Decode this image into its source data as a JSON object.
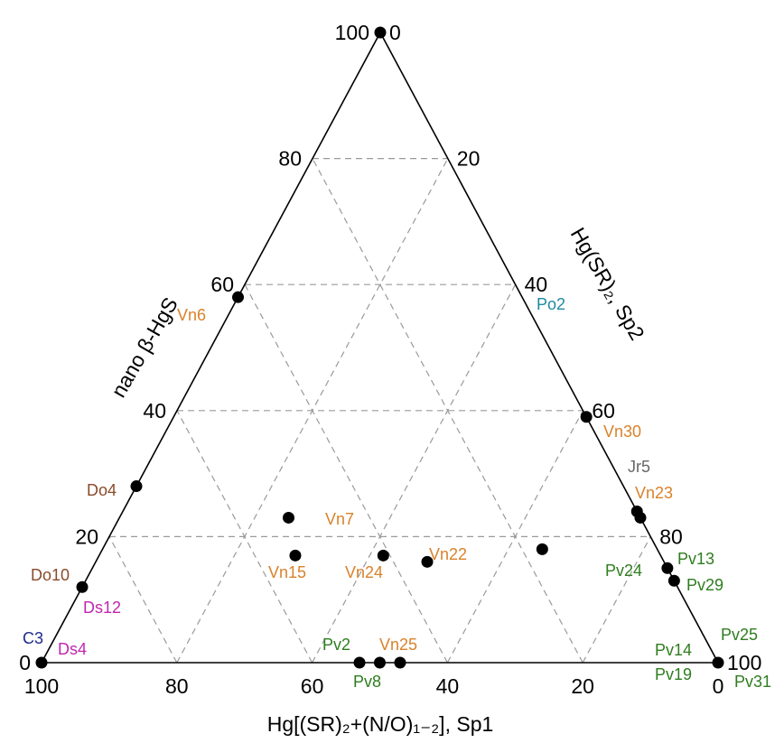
{
  "chart_data": {
    "type": "ternary scatter",
    "axes": {
      "bottom": {
        "title": "Hg[(SR)₂+(N/O)₁₋₂], Sp1",
        "ticks": [
          "100",
          "80",
          "60",
          "40",
          "20",
          "0"
        ]
      },
      "left": {
        "title": "nano β-HgS",
        "ticks": [
          "0",
          "20",
          "40",
          "60",
          "80",
          "100"
        ]
      },
      "right": {
        "title": "Hg(SR)₂, Sp2",
        "ticks": [
          "100",
          "80",
          "60",
          "40",
          "20",
          "0"
        ]
      }
    },
    "grid": true,
    "grid_step": 20,
    "colors": {
      "orange": "#d9822b",
      "green": "#2e7d1f",
      "brown": "#8b4a2b",
      "teal": "#1f8aa0",
      "magenta": "#c026b0",
      "navy": "#1f2a8c",
      "gray": "#666666"
    },
    "points": [
      {
        "sp2": 0,
        "hgs": 100,
        "sp1": 0
      },
      {
        "sp2": 0,
        "hgs": 58,
        "sp1": 42
      },
      {
        "sp2": 61,
        "hgs": 39,
        "sp1": 0
      },
      {
        "sp2": 0,
        "hgs": 28,
        "sp1": 72
      },
      {
        "sp2": 0,
        "hgs": 12,
        "sp1": 88
      },
      {
        "sp2": 0,
        "hgs": 0,
        "sp1": 100
      },
      {
        "sp2": 65,
        "hgs": 18,
        "sp1": 17
      },
      {
        "sp2": 25,
        "hgs": 23,
        "sp1": 52
      },
      {
        "sp2": 29,
        "hgs": 17,
        "sp1": 54
      },
      {
        "sp2": 42,
        "hgs": 17,
        "sp1": 41
      },
      {
        "sp2": 49,
        "hgs": 16,
        "sp1": 35
      },
      {
        "sp2": 76,
        "hgs": 24,
        "sp1": 0
      },
      {
        "sp2": 77,
        "hgs": 23,
        "sp1": 0
      },
      {
        "sp2": 85,
        "hgs": 15,
        "sp1": 0
      },
      {
        "sp2": 87,
        "hgs": 13,
        "sp1": 0
      },
      {
        "sp2": 47,
        "hgs": 0,
        "sp1": 53
      },
      {
        "sp2": 50,
        "hgs": 0,
        "sp1": 50
      },
      {
        "sp2": 53,
        "hgs": 0,
        "sp1": 47
      },
      {
        "sp2": 100,
        "hgs": 0,
        "sp1": 0
      }
    ],
    "labels": [
      {
        "text": "Vn6",
        "color": "orange"
      },
      {
        "text": "Po2",
        "color": "teal"
      },
      {
        "text": "Vn30",
        "color": "orange"
      },
      {
        "text": "Jr5",
        "color": "gray"
      },
      {
        "text": "Vn23",
        "color": "orange"
      },
      {
        "text": "Do4",
        "color": "brown"
      },
      {
        "text": "Vn7",
        "color": "orange"
      },
      {
        "text": "Vn15",
        "color": "orange"
      },
      {
        "text": "Vn24",
        "color": "orange"
      },
      {
        "text": "Vn22",
        "color": "orange"
      },
      {
        "text": "Pv13",
        "color": "green"
      },
      {
        "text": "Pv24",
        "color": "green"
      },
      {
        "text": "Pv29",
        "color": "green"
      },
      {
        "text": "Do10",
        "color": "brown"
      },
      {
        "text": "Ds12",
        "color": "magenta"
      },
      {
        "text": "C3",
        "color": "navy"
      },
      {
        "text": "Ds4",
        "color": "magenta"
      },
      {
        "text": "Pv2",
        "color": "green"
      },
      {
        "text": "Vn25",
        "color": "orange"
      },
      {
        "text": "Pv8",
        "color": "green"
      },
      {
        "text": "Pv25",
        "color": "green"
      },
      {
        "text": "Pv14",
        "color": "green"
      },
      {
        "text": "Pv19",
        "color": "green"
      },
      {
        "text": "Pv31",
        "color": "green"
      }
    ]
  }
}
